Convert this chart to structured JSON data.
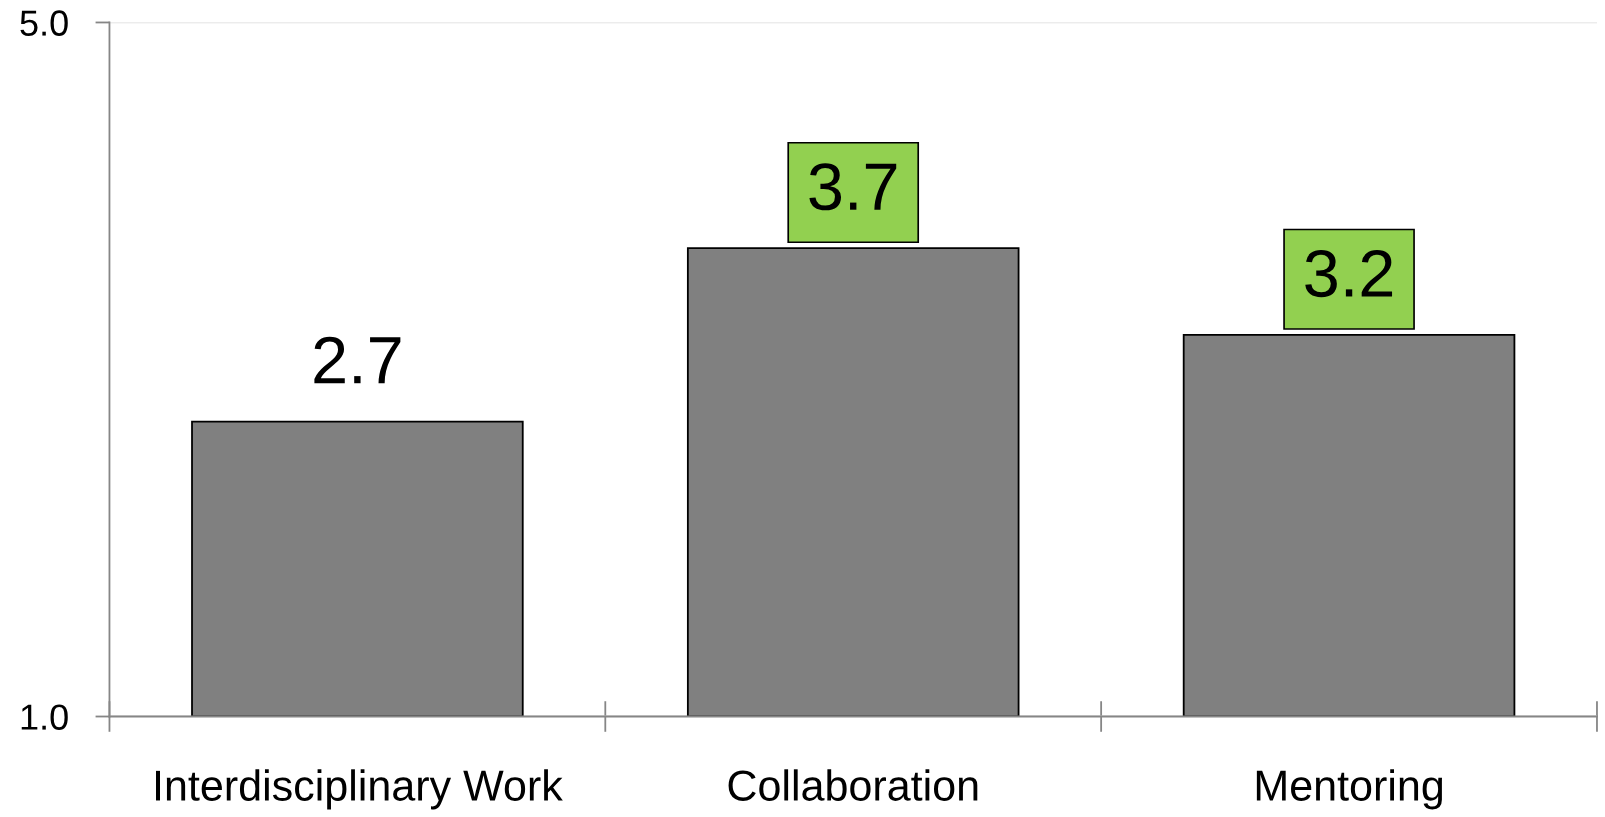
{
  "chart_data": {
    "type": "bar",
    "categories": [
      "Interdisciplinary Work",
      "Collaboration",
      "Mentoring"
    ],
    "values": [
      2.7,
      3.7,
      3.2
    ],
    "color": "#808080",
    "ylim": [
      1.0,
      5.0
    ],
    "yticks": [
      {
        "value": 1,
        "label": "1.0"
      },
      {
        "value": 5,
        "label": "5.0"
      }
    ],
    "grid": "y",
    "data_labels": true,
    "legend": false
  }
}
